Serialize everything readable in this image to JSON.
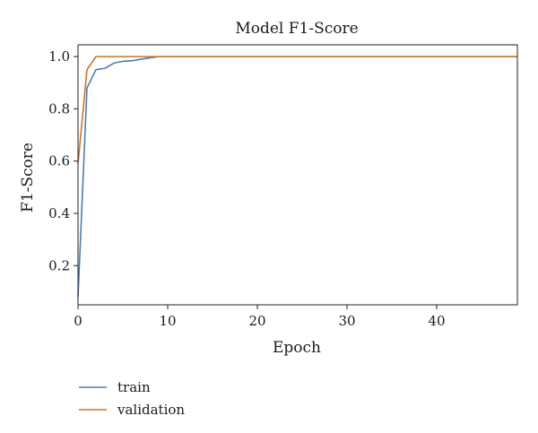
{
  "chart_data": {
    "type": "line",
    "title": "Model F1-Score",
    "xlabel": "Epoch",
    "ylabel": "F1-Score",
    "xlim": [
      0,
      49
    ],
    "ylim": [
      0.05,
      1.045
    ],
    "xticks": [
      0,
      10,
      20,
      30,
      40
    ],
    "yticks": [
      0.2,
      0.4,
      0.6,
      0.8,
      1.0
    ],
    "ytick_labels": [
      "0.2",
      "0.4",
      "0.6",
      "0.8",
      "1.0"
    ],
    "grid": false,
    "legend_position": "below-left",
    "series": [
      {
        "name": "train",
        "color": "#4a7ebb",
        "x": [
          0,
          1,
          2,
          3,
          4,
          5,
          6,
          7,
          8,
          9,
          10,
          11,
          12,
          13,
          14,
          15,
          16,
          17,
          18,
          19,
          20,
          21,
          22,
          23,
          24,
          25,
          26,
          27,
          28,
          29,
          30,
          31,
          32,
          33,
          34,
          35,
          36,
          37,
          38,
          39,
          40,
          41,
          42,
          43,
          44,
          45,
          46,
          47,
          48,
          49
        ],
        "y": [
          0.08,
          0.88,
          0.95,
          0.955,
          0.975,
          0.982,
          0.984,
          0.99,
          0.995,
          1.0,
          1.0,
          1.0,
          1.0,
          1.0,
          1.0,
          1.0,
          1.0,
          1.0,
          1.0,
          1.0,
          1.0,
          1.0,
          1.0,
          1.0,
          1.0,
          1.0,
          1.0,
          1.0,
          1.0,
          1.0,
          1.0,
          1.0,
          1.0,
          1.0,
          1.0,
          1.0,
          1.0,
          1.0,
          1.0,
          1.0,
          1.0,
          1.0,
          1.0,
          1.0,
          1.0,
          1.0,
          1.0,
          1.0,
          1.0,
          1.0
        ]
      },
      {
        "name": "validation",
        "color": "#d4731e",
        "x": [
          0,
          1,
          2,
          3,
          4,
          5,
          6,
          7,
          8,
          9,
          10,
          11,
          12,
          13,
          14,
          15,
          16,
          17,
          18,
          19,
          20,
          21,
          22,
          23,
          24,
          25,
          26,
          27,
          28,
          29,
          30,
          31,
          32,
          33,
          34,
          35,
          36,
          37,
          38,
          39,
          40,
          41,
          42,
          43,
          44,
          45,
          46,
          47,
          48,
          49
        ],
        "y": [
          0.59,
          0.95,
          1.0,
          1.0,
          1.0,
          1.0,
          1.0,
          1.0,
          1.0,
          1.0,
          1.0,
          1.0,
          1.0,
          1.0,
          1.0,
          1.0,
          1.0,
          1.0,
          1.0,
          1.0,
          1.0,
          1.0,
          1.0,
          1.0,
          1.0,
          1.0,
          1.0,
          1.0,
          1.0,
          1.0,
          1.0,
          1.0,
          1.0,
          1.0,
          1.0,
          1.0,
          1.0,
          1.0,
          1.0,
          1.0,
          1.0,
          1.0,
          1.0,
          1.0,
          1.0,
          1.0,
          1.0,
          1.0,
          1.0,
          1.0
        ]
      }
    ]
  }
}
